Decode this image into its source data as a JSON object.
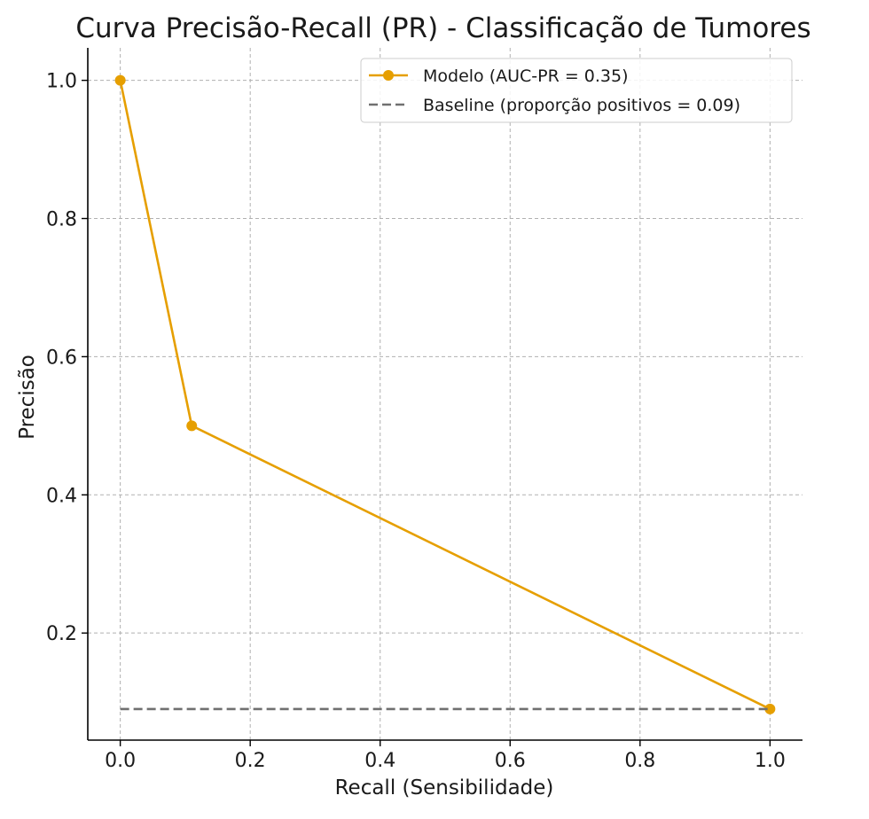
{
  "chart_data": {
    "type": "line",
    "title": "Curva Precisão-Recall (PR) - Classificação de Tumores",
    "xlabel": "Recall (Sensibilidade)",
    "ylabel": "Precisão",
    "xlim": [
      -0.05,
      1.05
    ],
    "ylim": [
      0.045,
      1.047
    ],
    "xticks": [
      0.0,
      0.2,
      0.4,
      0.6,
      0.8,
      1.0
    ],
    "xtick_labels": [
      "0.0",
      "0.2",
      "0.4",
      "0.6",
      "0.8",
      "1.0"
    ],
    "yticks": [
      0.2,
      0.4,
      0.6,
      0.8,
      1.0
    ],
    "ytick_labels": [
      "0.2",
      "0.4",
      "0.6",
      "0.8",
      "1.0"
    ],
    "grid": true,
    "legend_position": "top-right",
    "series": [
      {
        "name": "Modelo (AUC-PR = 0.35)",
        "style": "solid",
        "marker": "circle",
        "color": "#e69f00",
        "x": [
          0.0,
          0.11,
          1.0
        ],
        "y": [
          1.0,
          0.5,
          0.09
        ]
      },
      {
        "name": "Baseline (proporção positivos = 0.09)",
        "style": "dashed",
        "marker": "none",
        "color": "#707070",
        "x": [
          0.0,
          1.0
        ],
        "y": [
          0.09,
          0.09
        ]
      }
    ]
  }
}
